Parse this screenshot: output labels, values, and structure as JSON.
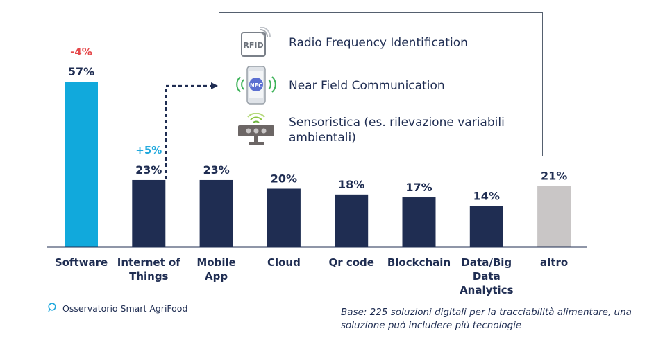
{
  "chart_data": {
    "type": "bar",
    "categories": [
      "Software",
      "Internet of Things",
      "Mobile App",
      "Cloud",
      "Qr code",
      "Blockchain",
      "Data/Big Data Analytics",
      "altro"
    ],
    "category_lines": [
      [
        "Software"
      ],
      [
        "Internet of",
        "Things"
      ],
      [
        "Mobile",
        "App"
      ],
      [
        "Cloud"
      ],
      [
        "Qr code"
      ],
      [
        "Blockchain"
      ],
      [
        "Data/Big",
        "Data",
        "Analytics"
      ],
      [
        "altro"
      ]
    ],
    "values": [
      57,
      23,
      23,
      20,
      18,
      17,
      14,
      21
    ],
    "value_labels": [
      "57%",
      "23%",
      "23%",
      "20%",
      "18%",
      "17%",
      "14%",
      "21%"
    ],
    "changes": [
      {
        "category": "Software",
        "label": "-4%",
        "color": "#e5474a"
      },
      {
        "category": "Internet of Things",
        "label": "+5%",
        "color": "#22a9dd"
      }
    ],
    "bar_colors": [
      "#11a9dc",
      "#1f2d52",
      "#1f2d52",
      "#1f2d52",
      "#1f2d52",
      "#1f2d52",
      "#1f2d52",
      "#c9c6c6"
    ],
    "ylim": [
      0,
      60
    ],
    "xlabel": "",
    "ylabel": "",
    "title": ""
  },
  "legend": {
    "items": [
      {
        "icon": "rfid-tag-icon",
        "icon_text": "RFID",
        "label": "Radio Frequency Identification"
      },
      {
        "icon": "nfc-phone-icon",
        "icon_text": "NFC",
        "label": "Near Field Communication"
      },
      {
        "icon": "sensor-icon",
        "label": "Sensoristica (es. rilevazione variabili ambientali)"
      }
    ]
  },
  "source": {
    "label": "Osservatorio Smart AgriFood"
  },
  "note": {
    "text": "Base: 225 soluzioni digitali per la tracciabilità alimentare, una soluzione può includere più tecnologie"
  },
  "colors": {
    "navy": "#1f2d52",
    "cyan": "#11a9dc",
    "grey": "#c9c6c6",
    "red": "#e5474a",
    "blue": "#22a9dd"
  }
}
